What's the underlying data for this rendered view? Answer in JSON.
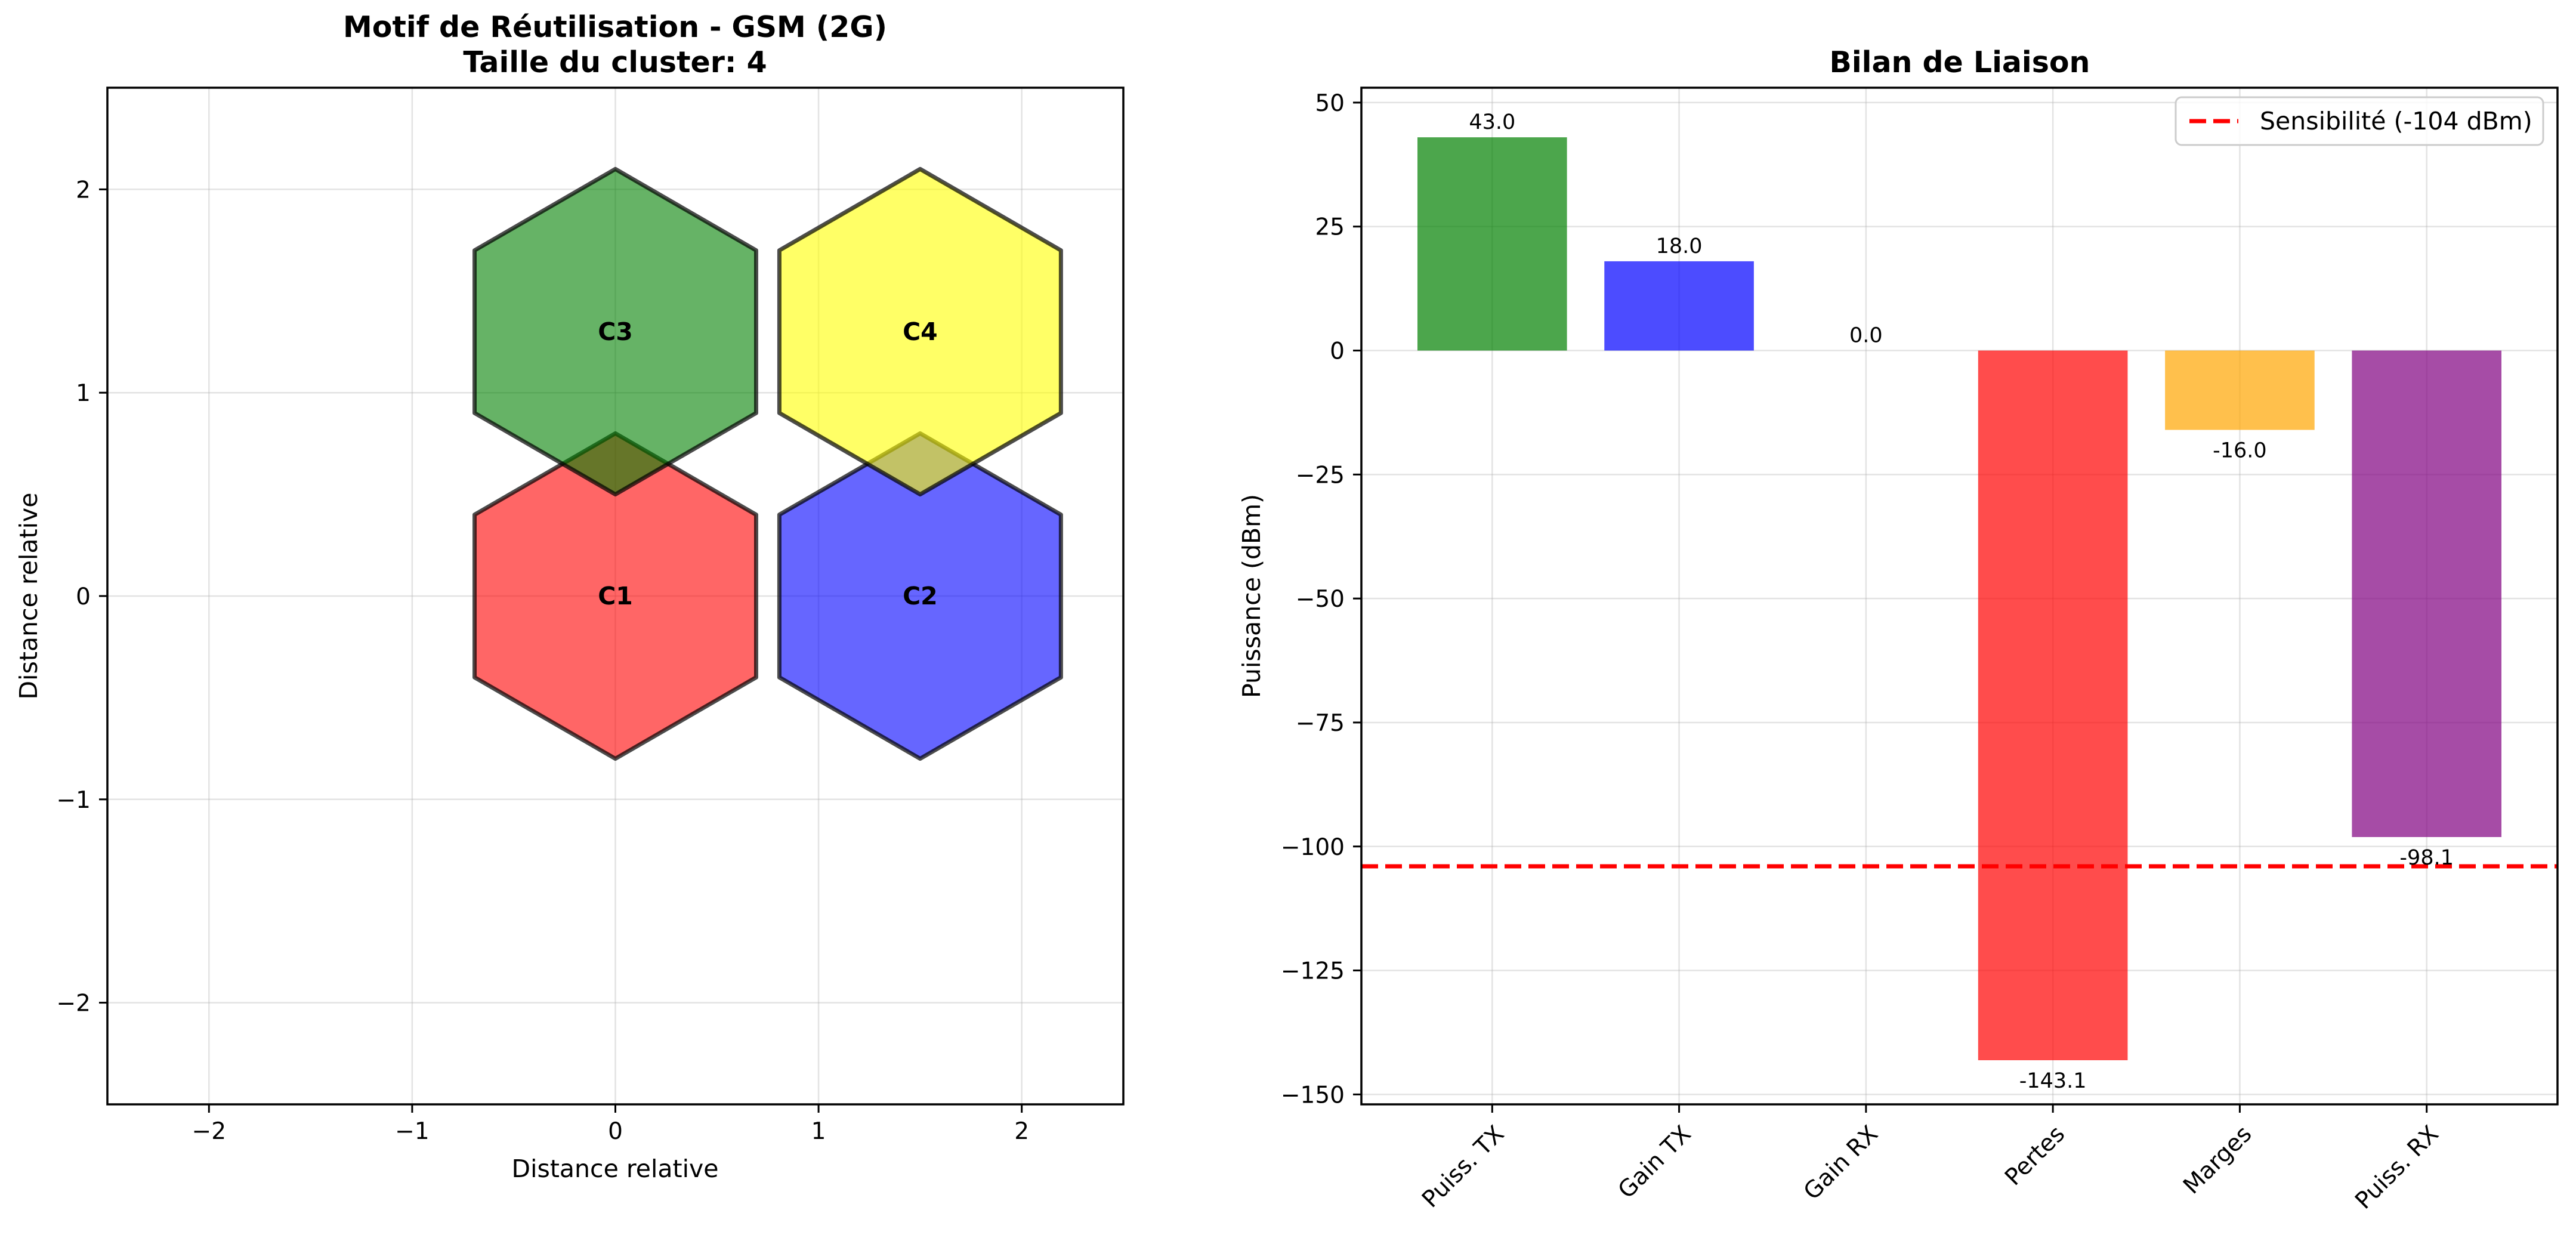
{
  "chart_data": [
    {
      "type": "other",
      "title_line1": "Motif de Réutilisation - GSM (2G)",
      "title_line2": "Taille du cluster: 4",
      "xlabel": "Distance relative",
      "ylabel": "Distance relative",
      "xlim": [
        -2.5,
        2.5
      ],
      "ylim": [
        -2.5,
        2.5
      ],
      "xticks": [
        "−2",
        "−1",
        "0",
        "1",
        "2"
      ],
      "yticks": [
        "−2",
        "−1",
        "0",
        "1",
        "2"
      ],
      "grid": true,
      "cells": [
        {
          "label": "C1",
          "x": 0.0,
          "y": 0.0,
          "color": "#ff0000"
        },
        {
          "label": "C2",
          "x": 1.5,
          "y": 0.0,
          "color": "#0000ff"
        },
        {
          "label": "C3",
          "x": 0.0,
          "y": 1.3,
          "color": "#008000"
        },
        {
          "label": "C4",
          "x": 1.5,
          "y": 1.3,
          "color": "#ffff00"
        }
      ],
      "cell_radius": 0.8
    },
    {
      "type": "bar",
      "title": "Bilan de Liaison",
      "xlabel": "",
      "ylabel": "Puissance (dBm)",
      "ylim": [
        -152,
        53
      ],
      "yticks": [
        "50",
        "25",
        "0",
        "−25",
        "−50",
        "−75",
        "−100",
        "−125",
        "−150"
      ],
      "categories": [
        "Puiss. TX",
        "Gain TX",
        "Gain RX",
        "Pertes",
        "Marges",
        "Puiss. RX"
      ],
      "values": [
        43.0,
        18.0,
        0.0,
        -143.1,
        -16.0,
        -98.1
      ],
      "value_labels": [
        "43.0",
        "18.0",
        "0.0",
        "-143.1",
        "-16.0",
        "-98.1"
      ],
      "colors": [
        "#008000",
        "#0000ff",
        "#ffa500",
        "#ff0000",
        "#ffa500",
        "#800080"
      ],
      "grid": true,
      "sensitivity": {
        "value": -104,
        "label": "Sensibilité (-104 dBm)",
        "color": "#ff0000"
      },
      "legend_position": "top-right"
    }
  ]
}
